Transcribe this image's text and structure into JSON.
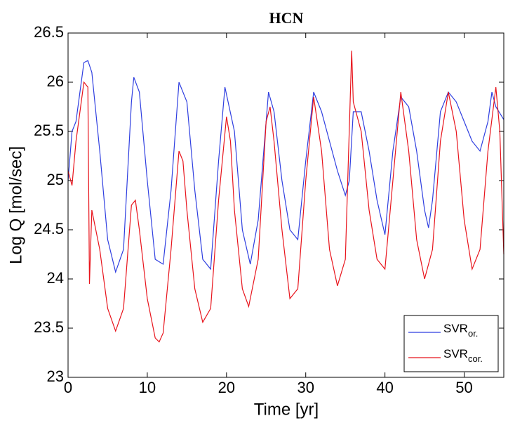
{
  "chart_data": {
    "type": "line",
    "title": "HCN",
    "x_label": "Time [yr]",
    "y_label": "Log Q [mol/sec]",
    "xlim": [
      0,
      55
    ],
    "xticks": [
      0,
      10,
      20,
      30,
      40,
      50
    ],
    "ylim": [
      23,
      26.5
    ],
    "yticks": [
      23,
      23.5,
      24,
      24.5,
      25,
      25.5,
      26,
      26.5
    ],
    "grid": false,
    "legend": "lower right",
    "series": [
      {
        "name": "SVR",
        "subscript": "or.",
        "color": "#2f3fe0",
        "x": [
          0,
          0.5,
          1,
          2,
          2.5,
          3,
          4,
          5,
          6,
          7,
          8,
          8.3,
          9,
          10,
          11,
          12,
          13,
          14,
          15,
          16,
          17,
          18,
          19,
          19.8,
          21,
          22,
          23,
          24,
          25.3,
          26,
          27,
          28,
          29,
          30,
          31,
          32,
          33,
          34,
          35,
          35.5,
          36,
          37,
          38,
          39,
          40,
          41,
          42,
          43,
          44,
          45,
          45.5,
          46,
          47,
          48,
          49,
          50,
          51,
          52,
          53,
          53.5,
          54,
          55
        ],
        "values": [
          25.0,
          25.5,
          25.6,
          26.2,
          26.22,
          26.1,
          25.3,
          24.4,
          24.07,
          24.3,
          25.8,
          26.05,
          25.9,
          25.0,
          24.2,
          24.15,
          24.9,
          26.0,
          25.8,
          24.9,
          24.2,
          24.1,
          25.2,
          25.95,
          25.5,
          24.5,
          24.15,
          24.6,
          25.9,
          25.7,
          25.0,
          24.5,
          24.4,
          25.2,
          25.9,
          25.7,
          25.4,
          25.1,
          24.85,
          25.0,
          25.7,
          25.7,
          25.3,
          24.8,
          24.45,
          25.3,
          25.85,
          25.75,
          25.3,
          24.7,
          24.52,
          24.8,
          25.7,
          25.9,
          25.8,
          25.6,
          25.4,
          25.3,
          25.6,
          25.9,
          25.75,
          25.62
        ]
      },
      {
        "name": "SVR",
        "subscript": "cor.",
        "color": "#e8141c",
        "x": [
          0,
          0.5,
          1,
          2,
          2.5,
          2.7,
          3,
          4,
          5,
          6,
          7,
          8,
          8.5,
          9,
          10,
          11,
          11.5,
          12,
          13,
          14,
          14.5,
          15,
          16,
          17,
          18,
          19,
          20,
          20.5,
          21,
          22,
          22.8,
          24,
          25,
          25.5,
          26,
          27,
          28,
          29,
          30,
          31,
          32,
          33,
          34,
          35,
          35.8,
          36,
          37,
          38,
          39,
          40,
          41,
          42,
          43,
          44,
          45,
          46,
          47,
          48,
          49,
          50,
          51,
          52,
          53,
          54,
          54.5,
          55
        ],
        "values": [
          25.1,
          24.95,
          25.4,
          26.0,
          25.95,
          23.95,
          24.7,
          24.3,
          23.7,
          23.47,
          23.7,
          24.75,
          24.8,
          24.5,
          23.8,
          23.4,
          23.36,
          23.45,
          24.3,
          25.3,
          25.2,
          24.7,
          23.9,
          23.56,
          23.7,
          24.8,
          25.65,
          25.4,
          24.7,
          23.9,
          23.72,
          24.2,
          25.6,
          25.75,
          25.4,
          24.5,
          23.8,
          23.9,
          25.0,
          25.85,
          25.3,
          24.3,
          23.93,
          24.2,
          26.32,
          25.8,
          25.5,
          24.7,
          24.2,
          24.1,
          25.0,
          25.9,
          25.3,
          24.4,
          24.0,
          24.3,
          25.4,
          25.9,
          25.5,
          24.6,
          24.1,
          24.3,
          25.3,
          25.95,
          25.5,
          24.25
        ]
      }
    ]
  }
}
